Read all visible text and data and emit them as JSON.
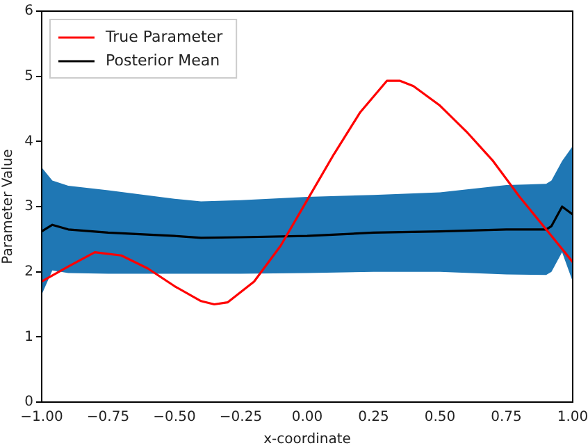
{
  "chart_data": {
    "type": "line",
    "xlabel": "x-coordinate",
    "ylabel": "Parameter Value",
    "xlim": [
      -1,
      1
    ],
    "ylim": [
      0,
      6
    ],
    "xticks": [
      {
        "value": -1,
        "label": "−1.00"
      },
      {
        "value": -0.75,
        "label": "−0.75"
      },
      {
        "value": -0.5,
        "label": "−0.50"
      },
      {
        "value": -0.25,
        "label": "−0.25"
      },
      {
        "value": 0,
        "label": "0.00"
      },
      {
        "value": 0.25,
        "label": "0.25"
      },
      {
        "value": 0.5,
        "label": "0.50"
      },
      {
        "value": 0.75,
        "label": "0.75"
      },
      {
        "value": 1,
        "label": "1.00"
      }
    ],
    "yticks": [
      0,
      1,
      2,
      3,
      4,
      5,
      6
    ],
    "grid": false,
    "legend": "top left",
    "marker": "none",
    "line_style": "solid",
    "series": [
      {
        "name": "True Parameter",
        "color": "#ff0000",
        "x": [
          -1,
          -0.9,
          -0.8,
          -0.7,
          -0.6,
          -0.5,
          -0.4,
          -0.35,
          -0.3,
          -0.2,
          -0.1,
          0,
          0.1,
          0.2,
          0.3,
          0.35,
          0.4,
          0.5,
          0.6,
          0.7,
          0.8,
          0.9,
          1
        ],
        "values": [
          1.85,
          2.08,
          2.3,
          2.25,
          2.05,
          1.78,
          1.55,
          1.5,
          1.53,
          1.85,
          2.4,
          3.1,
          3.8,
          4.45,
          4.93,
          4.93,
          4.85,
          4.55,
          4.15,
          3.7,
          3.15,
          2.65,
          2.15
        ]
      },
      {
        "name": "Posterior Mean",
        "color": "#000000",
        "x": [
          -1,
          -0.96,
          -0.9,
          -0.75,
          -0.5,
          -0.4,
          -0.25,
          0,
          0.25,
          0.5,
          0.75,
          0.9,
          0.92,
          0.96,
          1
        ],
        "values": [
          2.62,
          2.72,
          2.65,
          2.6,
          2.55,
          2.52,
          2.53,
          2.55,
          2.6,
          2.62,
          2.65,
          2.65,
          2.7,
          3.0,
          2.88
        ],
        "lower": [
          1.65,
          2.02,
          1.98,
          1.97,
          1.97,
          1.97,
          1.97,
          1.98,
          2.0,
          2.0,
          1.96,
          1.95,
          2.0,
          2.3,
          1.85
        ],
        "upper": [
          3.6,
          3.4,
          3.32,
          3.25,
          3.12,
          3.08,
          3.1,
          3.15,
          3.18,
          3.22,
          3.33,
          3.35,
          3.4,
          3.7,
          3.93
        ]
      }
    ]
  }
}
